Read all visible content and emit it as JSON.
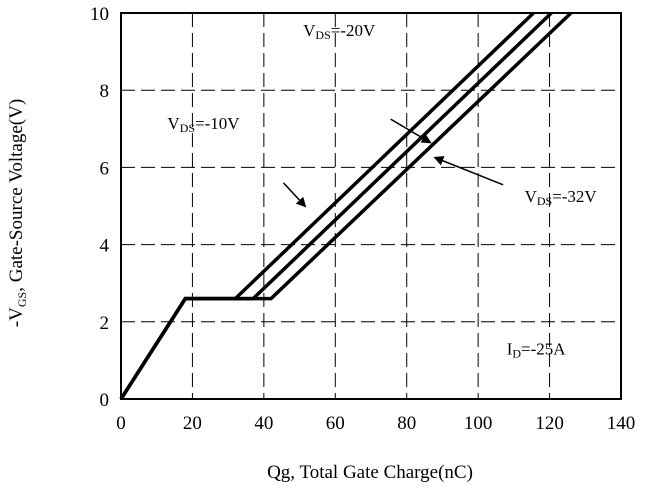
{
  "chart_data": {
    "type": "line",
    "xlabel": "Qg, Total Gate Charge(nC)",
    "ylabel_prefix": "-V",
    "ylabel_sub": "GS",
    "ylabel_suffix": ", Gate-Source Voltage(V)",
    "xlim": [
      0,
      140
    ],
    "ylim": [
      0,
      10
    ],
    "xticks": [
      0,
      20,
      40,
      60,
      80,
      100,
      120,
      140
    ],
    "yticks": [
      0,
      2,
      4,
      6,
      8,
      10
    ],
    "grid": true,
    "series": [
      {
        "name": "VDS=-10V",
        "x": [
          0,
          18,
          32,
          115.5
        ],
        "y": [
          0,
          2.6,
          2.6,
          10
        ]
      },
      {
        "name": "VDS=-20V",
        "x": [
          0,
          18,
          37,
          120.5
        ],
        "y": [
          0,
          2.6,
          2.6,
          10
        ]
      },
      {
        "name": "VDS=-32V",
        "x": [
          0,
          18,
          42,
          126
        ],
        "y": [
          0,
          2.6,
          2.6,
          10
        ]
      }
    ],
    "annotations": [
      {
        "id": "vds10",
        "prefix": "V",
        "sub": "DS",
        "text": "=-10V",
        "x": 13,
        "y": 7.0,
        "arrow_from": [
          45.5,
          5.6
        ],
        "arrow_to": [
          51.5,
          5.0
        ]
      },
      {
        "id": "vds20",
        "prefix": "V",
        "sub": "DS",
        "text": "=-20V",
        "x": 51,
        "y": 9.4,
        "arrow_from": [
          75.5,
          7.25
        ],
        "arrow_to": [
          86.5,
          6.65
        ]
      },
      {
        "id": "vds32",
        "prefix": "V",
        "sub": "DS",
        "text": "=-32V",
        "x": 113,
        "y": 5.1,
        "arrow_from": [
          107,
          5.55
        ],
        "arrow_to": [
          88,
          6.25
        ]
      },
      {
        "id": "id25",
        "prefix": "I",
        "sub": "D",
        "text": "=-25A",
        "x": 108,
        "y": 1.15
      }
    ]
  }
}
